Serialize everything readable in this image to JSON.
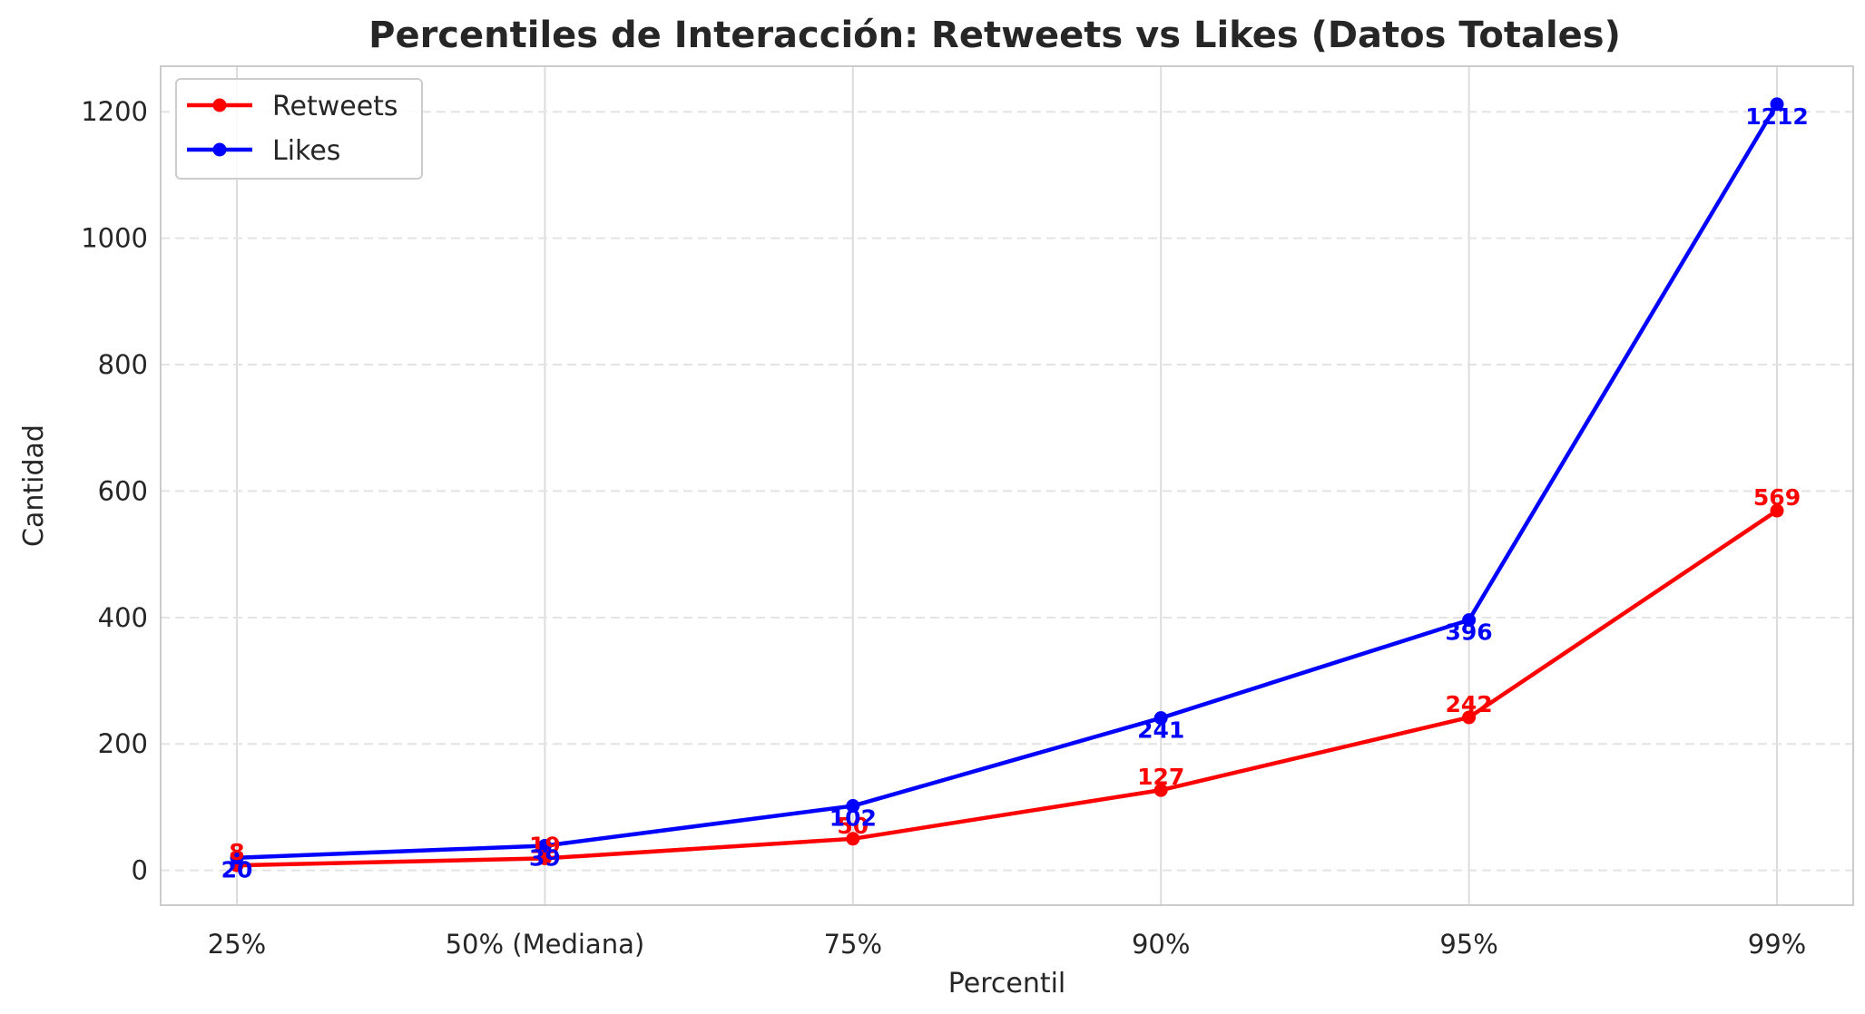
{
  "chart_data": {
    "type": "line",
    "title": "Percentiles de Interacción: Retweets vs Likes (Datos Totales)",
    "xlabel": "Percentil",
    "ylabel": "Cantidad",
    "categories": [
      "25%",
      "50% (Mediana)",
      "75%",
      "90%",
      "95%",
      "99%"
    ],
    "series": [
      {
        "name": "Retweets",
        "color": "#ff0000",
        "values": [
          8,
          19,
          50,
          127,
          242,
          569
        ],
        "labels": [
          "8",
          "19",
          "50",
          "127",
          "242",
          "569"
        ],
        "label_position": "above"
      },
      {
        "name": "Likes",
        "color": "#0000ff",
        "values": [
          20,
          39,
          102,
          241,
          396,
          1212
        ],
        "labels": [
          "20",
          "39",
          "102",
          "241",
          "396",
          "1212"
        ],
        "label_position": "below"
      }
    ],
    "ylim": [
      -55,
      1272
    ],
    "yticks": [
      0,
      200,
      400,
      600,
      800,
      1000,
      1200
    ],
    "grid": {
      "x": "solid",
      "y": "dashed"
    },
    "legend": "top-left"
  }
}
